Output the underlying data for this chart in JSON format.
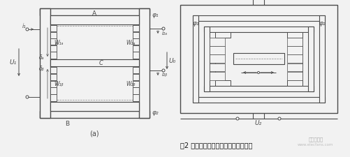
{
  "bg_color": "#f2f2f2",
  "line_color": "#555555",
  "dark_line": "#4a4a4a",
  "caption": "图2 差动变压器式传感器的结构示意图",
  "label_a": "A",
  "label_b": "B",
  "label_c": "C",
  "label_phi1": "φ₁",
  "label_phi2": "φ₂",
  "label_u1_left": "U₁",
  "label_u1_right": "U₁",
  "label_u2": "U₂",
  "label_ua": "U₀",
  "label_i1": "i₁",
  "label_w1a": "W₁ₐ",
  "label_w1b": "W₁ᵦ",
  "label_w2a": "W₂ₐ",
  "label_w2b": "W₂ᵦ",
  "label_delta_a": "δₐ",
  "label_delta_b": "δᵦ",
  "label_i2a": "i₂ₐ",
  "label_i2b": "i₂ᵦ",
  "label_sub": "(a)",
  "watermark1": "电子发烧友",
  "watermark2": "www.elecfans.com"
}
